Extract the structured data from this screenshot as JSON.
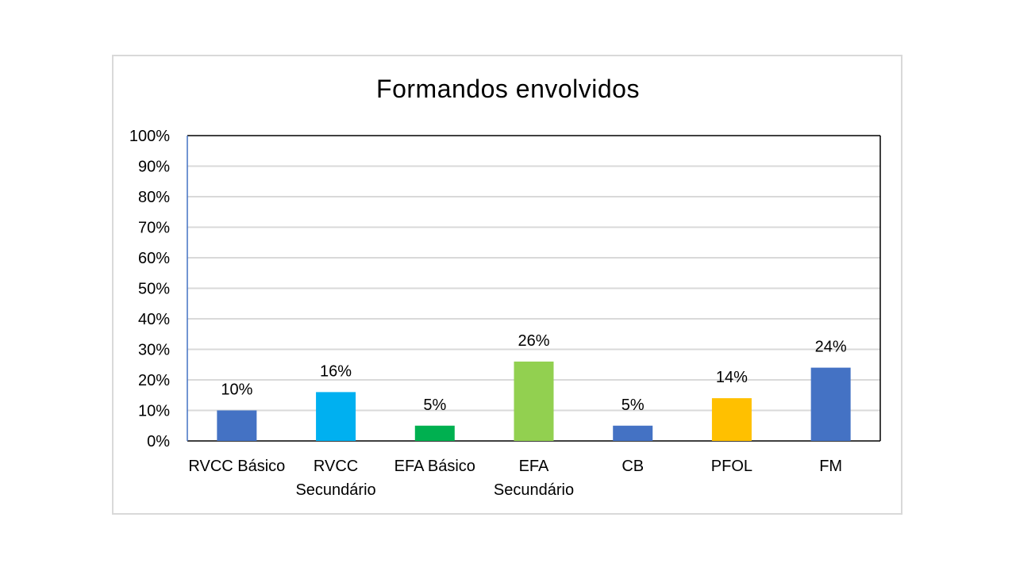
{
  "chart_data": {
    "type": "bar",
    "title": "Formandos envolvidos",
    "categories": [
      [
        "RVCC Básico"
      ],
      [
        "RVCC",
        "Secundário"
      ],
      [
        "EFA Básico"
      ],
      [
        "EFA",
        "Secundário"
      ],
      [
        "CB"
      ],
      [
        "PFOL"
      ],
      [
        "FM"
      ]
    ],
    "values": [
      10,
      16,
      5,
      26,
      5,
      14,
      24
    ],
    "value_labels": [
      "10%",
      "16%",
      "5%",
      "26%",
      "5%",
      "14%",
      "24%"
    ],
    "bar_colors": [
      "#4472c4",
      "#00b0f0",
      "#00b050",
      "#92d050",
      "#4472c4",
      "#ffc000",
      "#4472c4"
    ],
    "ylim": [
      0,
      100
    ],
    "yticks": [
      0,
      10,
      20,
      30,
      40,
      50,
      60,
      70,
      80,
      90,
      100
    ],
    "ytick_labels": [
      "0%",
      "10%",
      "20%",
      "30%",
      "40%",
      "50%",
      "60%",
      "70%",
      "80%",
      "90%",
      "100%"
    ],
    "grid": true,
    "legend": "none"
  }
}
